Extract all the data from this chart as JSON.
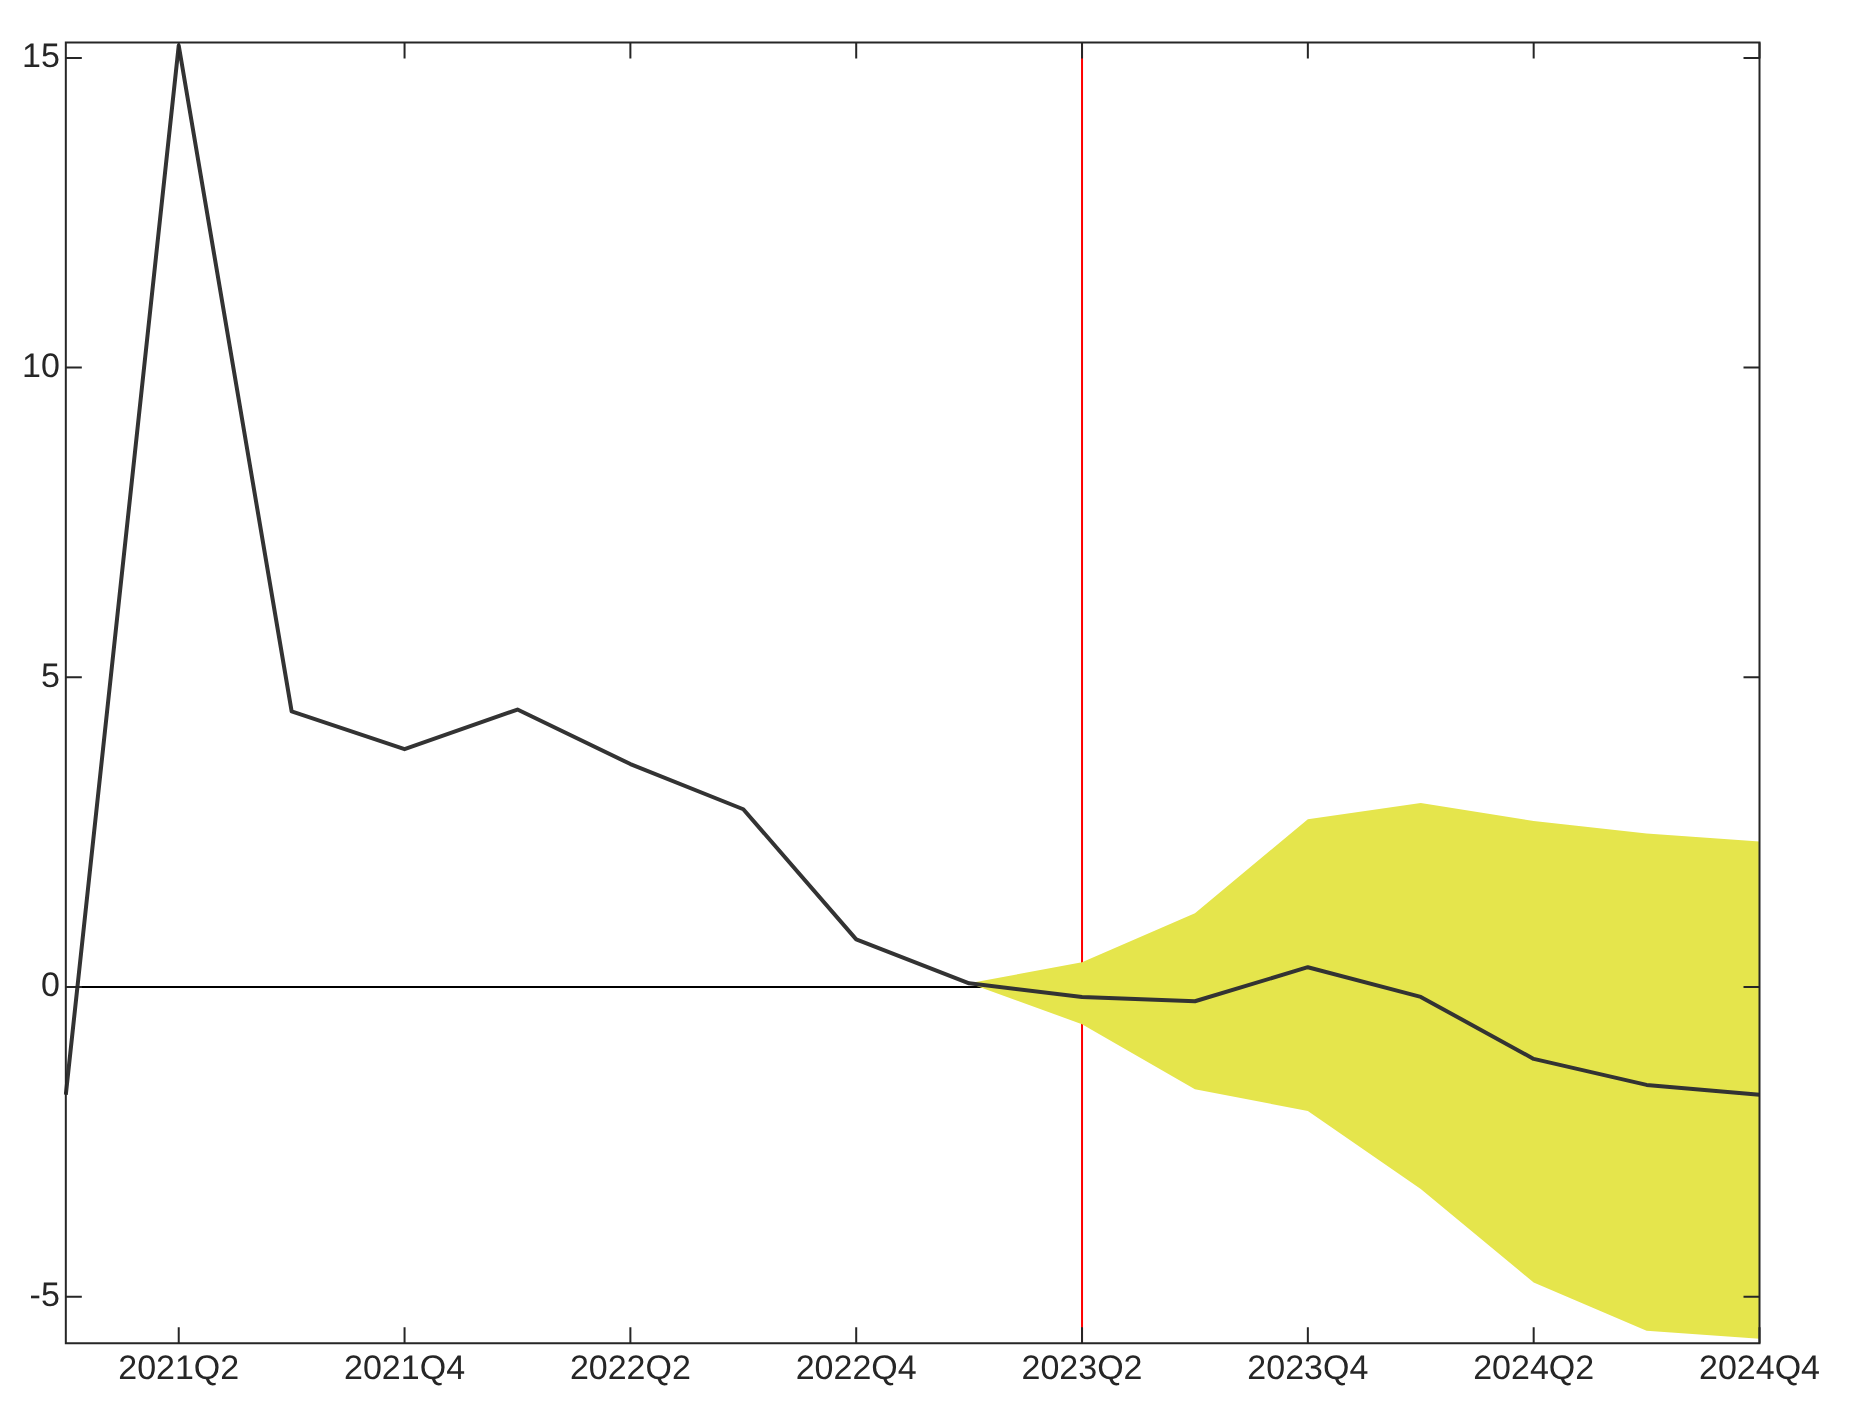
{
  "chart_data": {
    "type": "line",
    "categories": [
      null,
      "2021Q2",
      null,
      "2021Q4",
      null,
      "2022Q2",
      null,
      "2022Q4",
      null,
      "2023Q2",
      null,
      "2023Q4",
      null,
      "2024Q2",
      null,
      "2024Q4"
    ],
    "series": [
      {
        "color": "#333333",
        "values": [
          -1.74,
          15.2,
          4.45,
          3.84,
          4.48,
          3.6,
          2.87,
          0.77,
          0.06,
          -0.16,
          -0.23,
          0.32,
          -0.16,
          -1.16,
          -1.58,
          -1.74
        ],
        "lower": [
          null,
          null,
          null,
          null,
          null,
          null,
          null,
          null,
          0.06,
          -0.6,
          -1.65,
          -2.0,
          -3.26,
          -4.77,
          -5.55,
          -5.68
        ],
        "upper": [
          null,
          null,
          null,
          null,
          null,
          null,
          null,
          null,
          0.06,
          0.4,
          1.19,
          2.71,
          2.97,
          2.68,
          2.48,
          2.35
        ]
      }
    ],
    "ylim": [
      -5.75,
      15.25
    ],
    "yticks": [
      -5,
      0,
      5,
      10,
      15
    ],
    "ref_lines": [
      {
        "axis": "y",
        "value": 0,
        "color": "#000000"
      },
      {
        "axis": "x",
        "value": "2023Q2",
        "color": "#ff0000"
      }
    ],
    "grid": false,
    "legend": false
  }
}
